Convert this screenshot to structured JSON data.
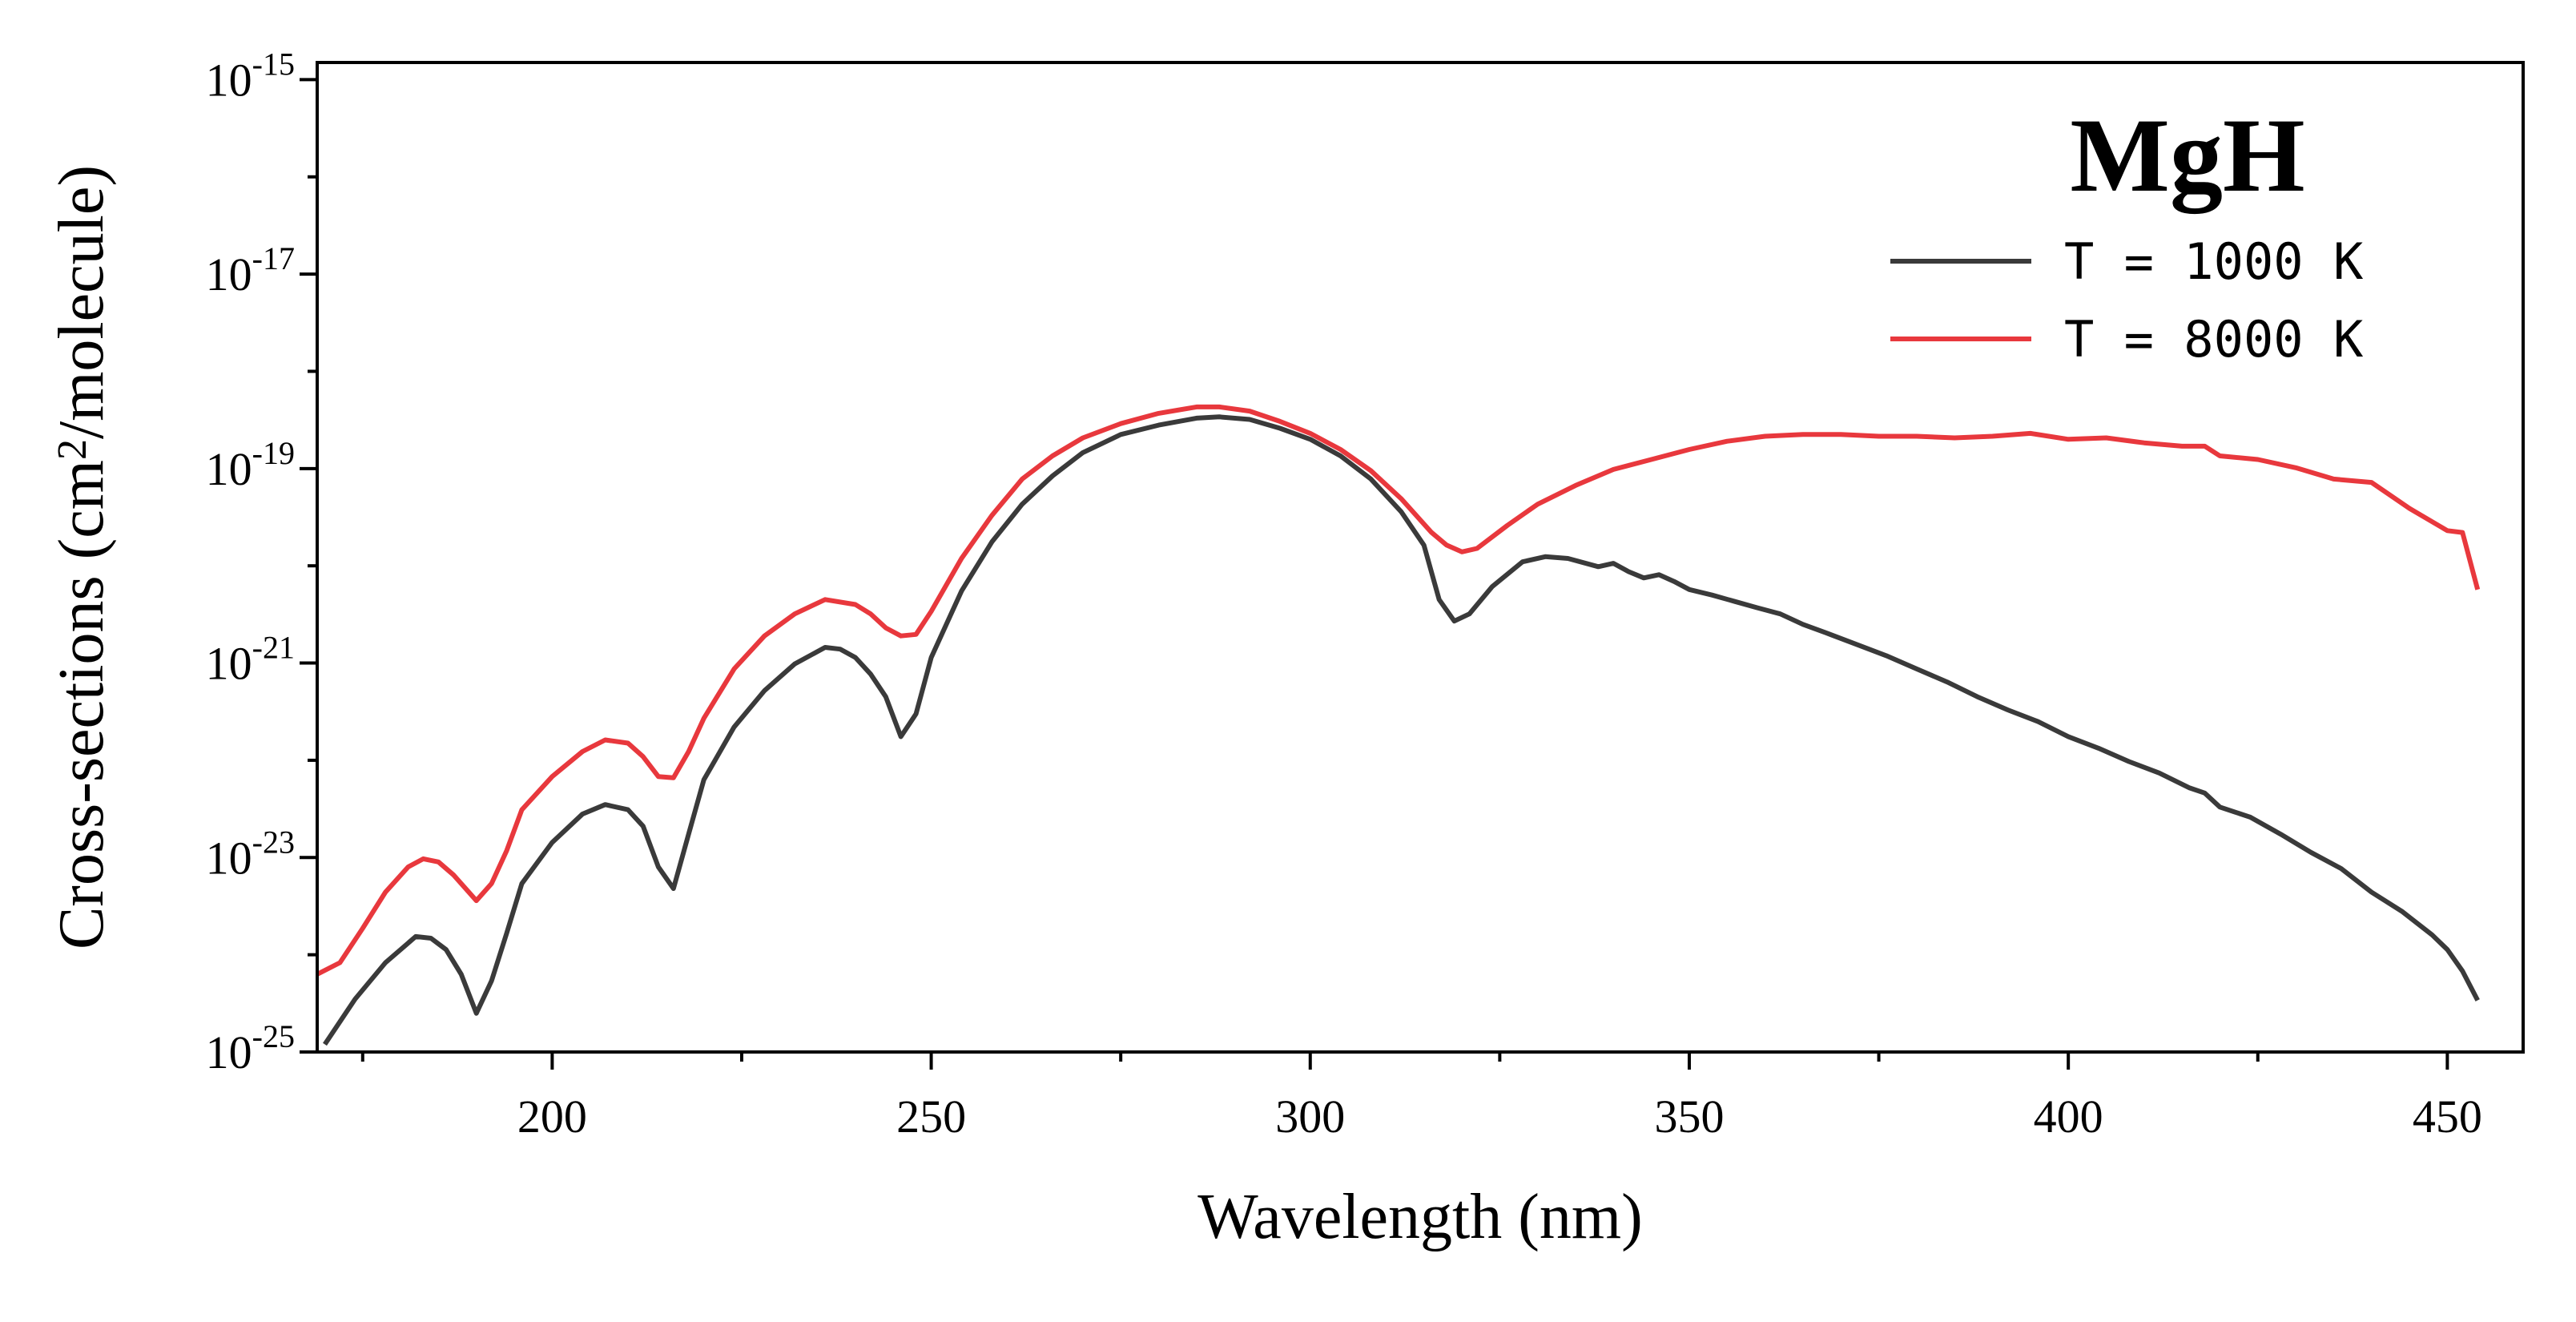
{
  "chart_data": {
    "type": "line",
    "title": "MgH",
    "xlabel": "Wavelength (nm)",
    "ylabel": "Cross-sections (cm2/molecule)",
    "xlim": [
      169,
      460
    ],
    "ylim": [
      1e-25,
      1.5e-15
    ],
    "log_y": true,
    "xticks": [
      200,
      250,
      300,
      350,
      400,
      450
    ],
    "xminorticks": [
      175,
      225,
      275,
      325,
      375,
      425
    ],
    "yticks": [
      {
        "value": 1e-25,
        "label": "10-25"
      },
      {
        "value": 1e-23,
        "label": "10-23"
      },
      {
        "value": 1e-21,
        "label": "10-21"
      },
      {
        "value": 1e-19,
        "label": "10-19"
      },
      {
        "value": 1e-17,
        "label": "10-17"
      },
      {
        "value": 1e-15,
        "label": "10-15"
      }
    ],
    "yminorticks": [
      1e-24,
      1e-22,
      1e-20,
      1e-18,
      1e-16
    ],
    "legend": "upper right",
    "series": [
      {
        "name": "T = 1000 K",
        "color": "#3a3a3a",
        "x": [
          170,
          174,
          178,
          182,
          184,
          186,
          188,
          190,
          192,
          194,
          196,
          200,
          204,
          207,
          210,
          212,
          214,
          216,
          218,
          220,
          224,
          228,
          232,
          236,
          238,
          240,
          242,
          244,
          246,
          248,
          250,
          254,
          258,
          262,
          266,
          270,
          275,
          280,
          285,
          288,
          292,
          296,
          300,
          304,
          308,
          312,
          315,
          317,
          319,
          321,
          324,
          328,
          331,
          334,
          338,
          340,
          342,
          344,
          346,
          348,
          350,
          353,
          356,
          359,
          362,
          365,
          368,
          372,
          376,
          380,
          384,
          388,
          392,
          396,
          400,
          404,
          408,
          412,
          416,
          418,
          420,
          424,
          428,
          432,
          436,
          440,
          444,
          448,
          450,
          452,
          454
        ],
        "values": [
          1.2e-25,
          3.5e-25,
          8.3e-25,
          1.54e-24,
          1.48e-24,
          1.13e-24,
          6.3e-25,
          2.5e-25,
          5.4e-25,
          1.67e-24,
          5.4e-24,
          1.43e-23,
          2.8e-23,
          3.5e-23,
          3.1e-23,
          2.1e-23,
          8e-24,
          4.8e-24,
          1.74e-23,
          6.3e-23,
          2.2e-22,
          5.2e-22,
          9.8e-22,
          1.45e-21,
          1.39e-21,
          1.14e-21,
          7.7e-22,
          4.5e-22,
          1.75e-22,
          3e-22,
          1.14e-21,
          5.5e-21,
          1.76e-20,
          4.3e-20,
          8.4e-20,
          1.46e-19,
          2.24e-19,
          2.8e-19,
          3.3e-19,
          3.4e-19,
          3.2e-19,
          2.6e-19,
          2e-19,
          1.35e-19,
          7.8e-20,
          3.6e-20,
          1.63e-20,
          4.5e-21,
          2.7e-21,
          3.2e-21,
          6.1e-21,
          1.1e-20,
          1.24e-20,
          1.19e-20,
          9.8e-21,
          1.06e-20,
          8.7e-21,
          7.5e-21,
          8.1e-21,
          6.9e-21,
          5.7e-21,
          5e-21,
          4.3e-21,
          3.7e-21,
          3.2e-21,
          2.5e-21,
          2.05e-21,
          1.56e-21,
          1.19e-21,
          8.7e-22,
          6.4e-22,
          4.5e-22,
          3.3e-22,
          2.5e-22,
          1.75e-22,
          1.33e-22,
          9.7e-23,
          7.4e-23,
          5.2e-23,
          4.6e-23,
          3.3e-23,
          2.6e-23,
          1.74e-23,
          1.13e-23,
          7.7e-24,
          4.4e-24,
          2.8e-24,
          1.6e-24,
          1.13e-24,
          6.8e-25,
          3.4e-25
        ]
      },
      {
        "name": "T = 8000 K",
        "color": "#e8383d",
        "x": [
          169,
          172,
          175,
          178,
          181,
          183,
          185,
          187,
          189,
          190,
          192,
          194,
          196,
          200,
          204,
          207,
          210,
          212,
          214,
          216,
          218,
          220,
          224,
          228,
          232,
          236,
          240,
          242,
          244,
          246,
          248,
          250,
          254,
          258,
          262,
          266,
          270,
          275,
          280,
          285,
          288,
          292,
          296,
          300,
          304,
          308,
          312,
          316,
          318,
          320,
          322,
          326,
          330,
          335,
          340,
          345,
          350,
          355,
          360,
          365,
          370,
          375,
          380,
          385,
          390,
          395,
          400,
          405,
          410,
          415,
          418,
          420,
          425,
          430,
          435,
          440,
          445,
          450,
          452,
          454
        ],
        "values": [
          6.3e-25,
          8.3e-25,
          1.87e-24,
          4.4e-24,
          8e-24,
          9.7e-24,
          9e-24,
          6.6e-24,
          4.4e-24,
          3.6e-24,
          5.4e-24,
          1.18e-23,
          3.1e-23,
          6.8e-23,
          1.23e-22,
          1.62e-22,
          1.5e-22,
          1.09e-22,
          6.8e-23,
          6.6e-23,
          1.23e-22,
          2.7e-22,
          8.7e-22,
          1.9e-21,
          3.2e-21,
          4.5e-21,
          4e-21,
          3.2e-21,
          2.3e-21,
          1.9e-21,
          1.97e-21,
          3.4e-21,
          1.19e-20,
          3.3e-20,
          7.8e-20,
          1.35e-19,
          2.07e-19,
          2.9e-19,
          3.7e-19,
          4.3e-19,
          4.3e-19,
          3.9e-19,
          3.06e-19,
          2.3e-19,
          1.57e-19,
          9.5e-20,
          4.9e-20,
          2.2e-20,
          1.63e-20,
          1.39e-20,
          1.51e-20,
          2.6e-20,
          4.3e-20,
          6.7e-20,
          9.8e-20,
          1.24e-19,
          1.57e-19,
          1.91e-19,
          2.15e-19,
          2.24e-19,
          2.24e-19,
          2.15e-19,
          2.15e-19,
          2.07e-19,
          2.15e-19,
          2.3e-19,
          2e-19,
          2.07e-19,
          1.84e-19,
          1.7e-19,
          1.7e-19,
          1.35e-19,
          1.24e-19,
          1.02e-19,
          7.8e-20,
          7.2e-20,
          3.9e-20,
          2.3e-20,
          2.2e-20,
          5.7e-21
        ]
      }
    ]
  }
}
